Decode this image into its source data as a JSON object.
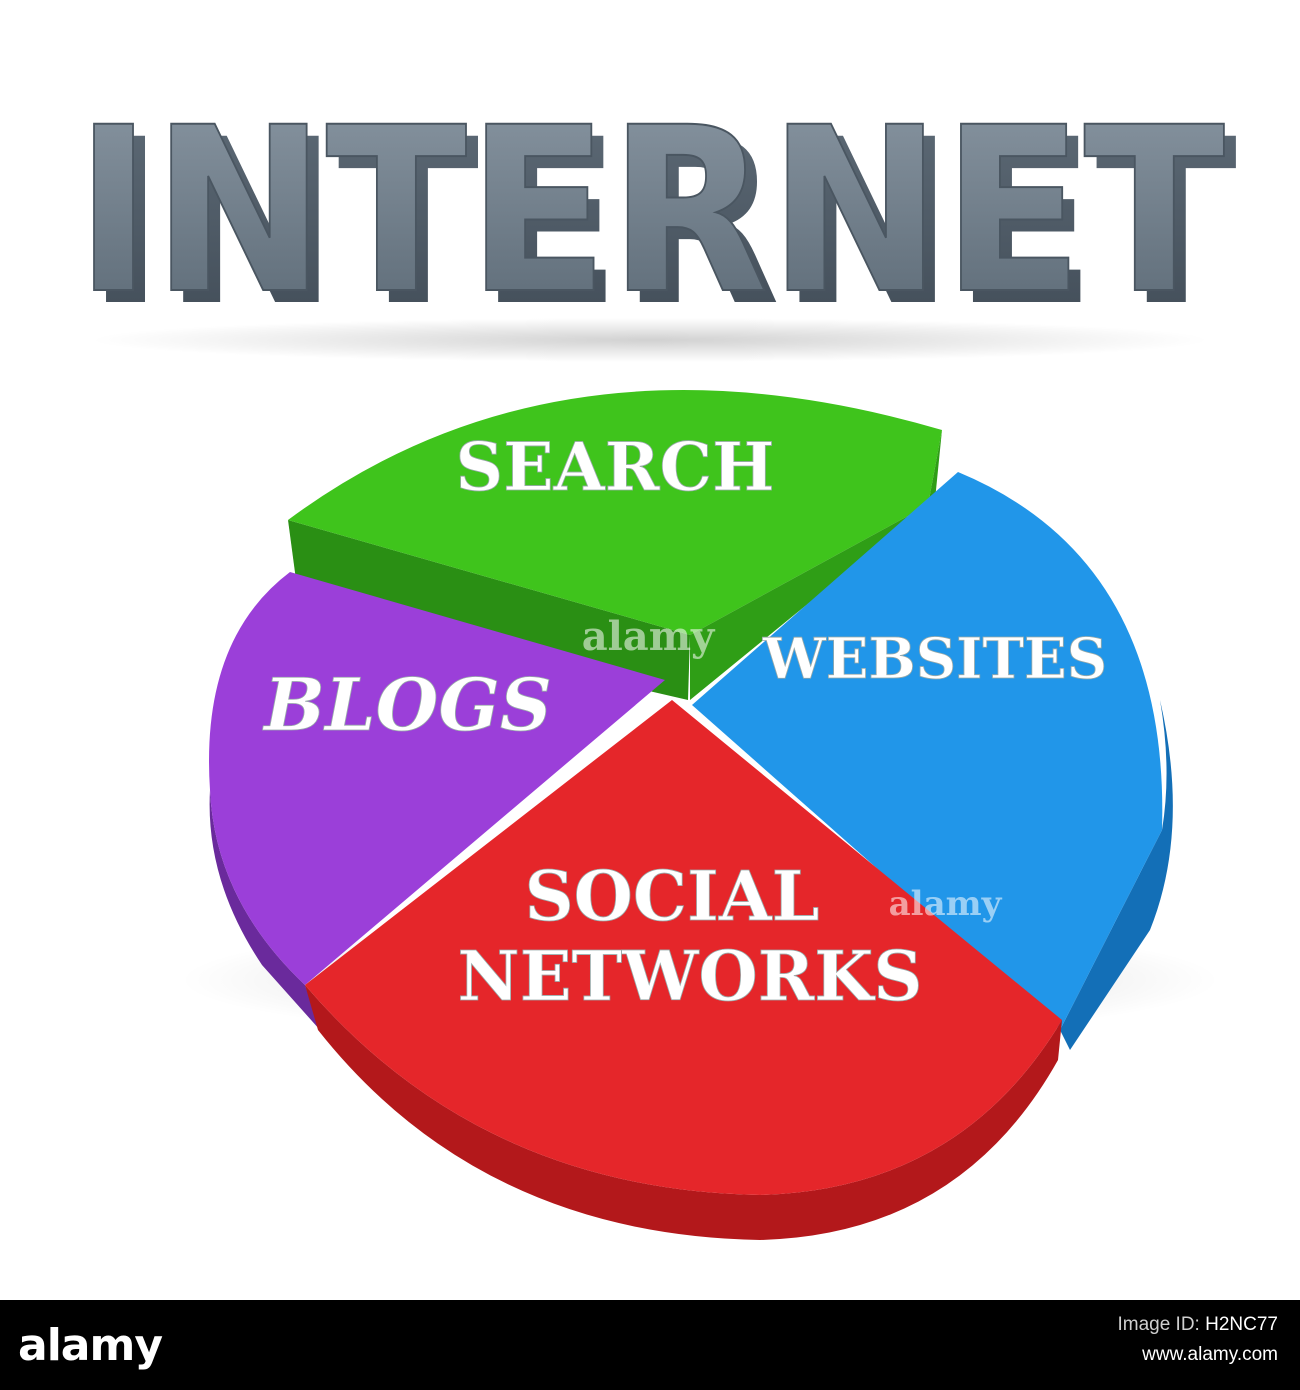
{
  "title": "INTERNET",
  "chart_data": {
    "type": "pie",
    "slices": [
      {
        "label_lines": [
          "SEARCH"
        ],
        "color": "#3fc41c"
      },
      {
        "label_lines": [
          "WEBSITES"
        ],
        "color": "#2196e9"
      },
      {
        "label_lines": [
          "SOCIAL",
          "NETWORKS"
        ],
        "color": "#e5262a"
      },
      {
        "label_lines": [
          "BLOGS"
        ],
        "color": "#9b3fd9"
      }
    ]
  },
  "watermark": "alamy",
  "footer": {
    "logo": "alamy",
    "image_id_label": "Image ID:",
    "image_id": "H2NC77",
    "site": "www.alamy.com"
  }
}
